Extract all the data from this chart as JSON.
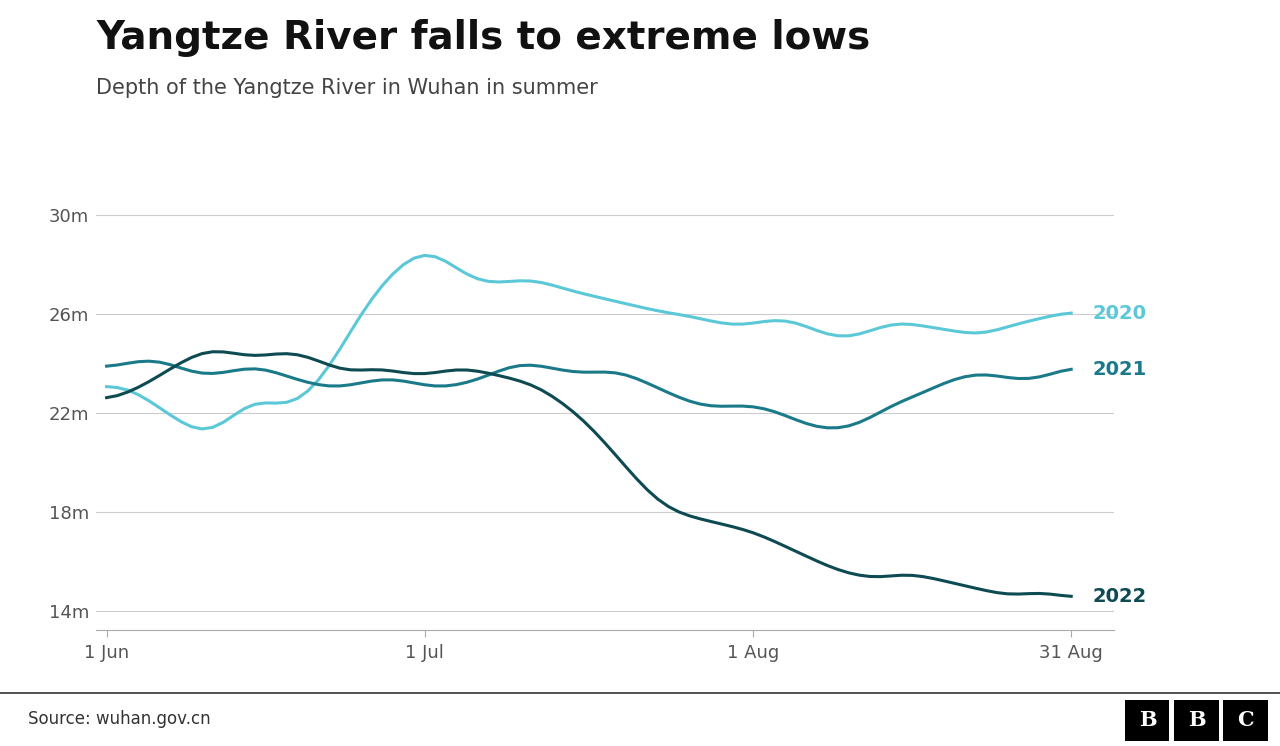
{
  "title": "Yangtze River falls to extreme lows",
  "subtitle": "Depth of the Yangtze River in Wuhan in summer",
  "source": "Source: wuhan.gov.cn",
  "ylabel_ticks": [
    14,
    18,
    22,
    26,
    30
  ],
  "ylabel_labels": [
    "14m",
    "18m",
    "22m",
    "26m",
    "30m"
  ],
  "ylim": [
    13.2,
    31.5
  ],
  "color_2020": "#5bc8d8",
  "color_2021": "#1a7a8a",
  "color_2022": "#0d4a52",
  "line_width": 2.2,
  "background_color": "#ffffff",
  "x_tick_labels": [
    "1 Jun",
    "1 Jul",
    "1 Aug",
    "31 Aug"
  ],
  "year_2020": [
    23.0,
    23.2,
    23.0,
    22.8,
    22.5,
    22.2,
    21.9,
    21.6,
    21.3,
    21.1,
    21.2,
    21.5,
    21.9,
    22.3,
    22.6,
    22.5,
    22.3,
    22.2,
    22.4,
    22.7,
    23.2,
    23.8,
    24.5,
    25.3,
    26.0,
    26.7,
    27.2,
    27.7,
    28.1,
    28.4,
    28.6,
    28.5,
    28.2,
    27.8,
    27.5,
    27.3,
    27.2,
    27.2,
    27.3,
    27.4,
    27.4,
    27.3,
    27.2,
    27.0,
    26.9,
    26.8,
    26.7,
    26.6,
    26.5,
    26.4,
    26.3,
    26.2,
    26.1,
    26.0,
    26.0,
    25.9,
    25.8,
    25.7,
    25.6,
    25.5,
    25.5,
    25.6,
    25.7,
    25.8,
    25.8,
    25.7,
    25.5,
    25.3,
    25.1,
    25.0,
    25.0,
    25.1,
    25.3,
    25.5,
    25.6,
    25.7,
    25.6,
    25.5,
    25.4,
    25.4,
    25.3,
    25.2,
    25.1,
    25.2,
    25.3,
    25.5,
    25.6,
    25.7,
    25.8,
    25.9,
    26.0,
    26.1
  ],
  "year_2021": [
    23.8,
    23.9,
    24.0,
    24.1,
    24.2,
    24.1,
    24.0,
    23.8,
    23.6,
    23.5,
    23.5,
    23.6,
    23.7,
    23.8,
    23.9,
    23.8,
    23.6,
    23.5,
    23.3,
    23.2,
    23.1,
    23.0,
    23.0,
    23.1,
    23.2,
    23.3,
    23.4,
    23.4,
    23.3,
    23.2,
    23.1,
    23.0,
    23.0,
    23.1,
    23.2,
    23.3,
    23.5,
    23.7,
    23.9,
    24.0,
    24.0,
    23.9,
    23.8,
    23.7,
    23.6,
    23.6,
    23.6,
    23.7,
    23.7,
    23.6,
    23.4,
    23.2,
    23.0,
    22.8,
    22.6,
    22.4,
    22.3,
    22.2,
    22.2,
    22.3,
    22.3,
    22.3,
    22.2,
    22.1,
    21.9,
    21.7,
    21.5,
    21.4,
    21.3,
    21.3,
    21.4,
    21.5,
    21.8,
    22.0,
    22.3,
    22.5,
    22.6,
    22.8,
    23.0,
    23.2,
    23.4,
    23.5,
    23.6,
    23.6,
    23.5,
    23.4,
    23.3,
    23.3,
    23.4,
    23.5,
    23.7,
    23.9
  ],
  "year_2022": [
    22.5,
    22.6,
    22.8,
    23.0,
    23.2,
    23.5,
    23.8,
    24.0,
    24.3,
    24.5,
    24.6,
    24.5,
    24.4,
    24.3,
    24.2,
    24.3,
    24.4,
    24.5,
    24.4,
    24.3,
    24.1,
    23.9,
    23.7,
    23.6,
    23.7,
    23.8,
    23.8,
    23.7,
    23.6,
    23.5,
    23.5,
    23.6,
    23.7,
    23.8,
    23.8,
    23.7,
    23.6,
    23.5,
    23.4,
    23.3,
    23.2,
    23.0,
    22.7,
    22.4,
    22.1,
    21.7,
    21.3,
    20.8,
    20.3,
    19.8,
    19.3,
    18.8,
    18.4,
    18.1,
    17.9,
    17.8,
    17.7,
    17.6,
    17.5,
    17.4,
    17.3,
    17.2,
    17.0,
    16.8,
    16.6,
    16.4,
    16.2,
    16.0,
    15.8,
    15.6,
    15.5,
    15.4,
    15.3,
    15.3,
    15.4,
    15.5,
    15.5,
    15.4,
    15.3,
    15.2,
    15.1,
    15.0,
    14.9,
    14.8,
    14.7,
    14.6,
    14.6,
    14.7,
    14.8,
    14.7,
    14.6,
    14.5
  ]
}
